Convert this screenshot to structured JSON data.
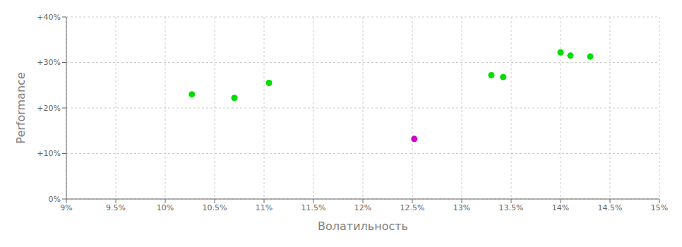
{
  "chart_data": {
    "type": "scatter",
    "xlabel": "Волатильность",
    "ylabel": "Performance",
    "xlim": [
      9.0,
      15.0
    ],
    "ylim": [
      0.0,
      40.0
    ],
    "xticks": [
      {
        "value": 9.0,
        "label": "9%"
      },
      {
        "value": 9.5,
        "label": "9.5%"
      },
      {
        "value": 10.0,
        "label": "10%"
      },
      {
        "value": 10.5,
        "label": "10.5%"
      },
      {
        "value": 11.0,
        "label": "11%"
      },
      {
        "value": 11.5,
        "label": "11.5%"
      },
      {
        "value": 12.0,
        "label": "12%"
      },
      {
        "value": 12.5,
        "label": "12.5%"
      },
      {
        "value": 13.0,
        "label": "13%"
      },
      {
        "value": 13.5,
        "label": "13.5%"
      },
      {
        "value": 14.0,
        "label": "14%"
      },
      {
        "value": 14.5,
        "label": "14.5%"
      },
      {
        "value": 15.0,
        "label": "15%"
      }
    ],
    "yticks": [
      {
        "value": 0,
        "label": "0%"
      },
      {
        "value": 10,
        "label": "+10%"
      },
      {
        "value": 20,
        "label": "+20%"
      },
      {
        "value": 30,
        "label": "+30%"
      },
      {
        "value": 40,
        "label": "+40%"
      }
    ],
    "grid": true,
    "series": [
      {
        "color": "#00dd00",
        "x": [
          10.27,
          10.7,
          11.05,
          13.3,
          13.42,
          14.0,
          14.1,
          14.3
        ],
        "values": [
          23.0,
          22.2,
          25.5,
          27.2,
          26.8,
          32.2,
          31.5,
          31.3
        ]
      },
      {
        "color": "#cc00cc",
        "x": [
          12.52
        ],
        "values": [
          13.2
        ]
      }
    ]
  }
}
